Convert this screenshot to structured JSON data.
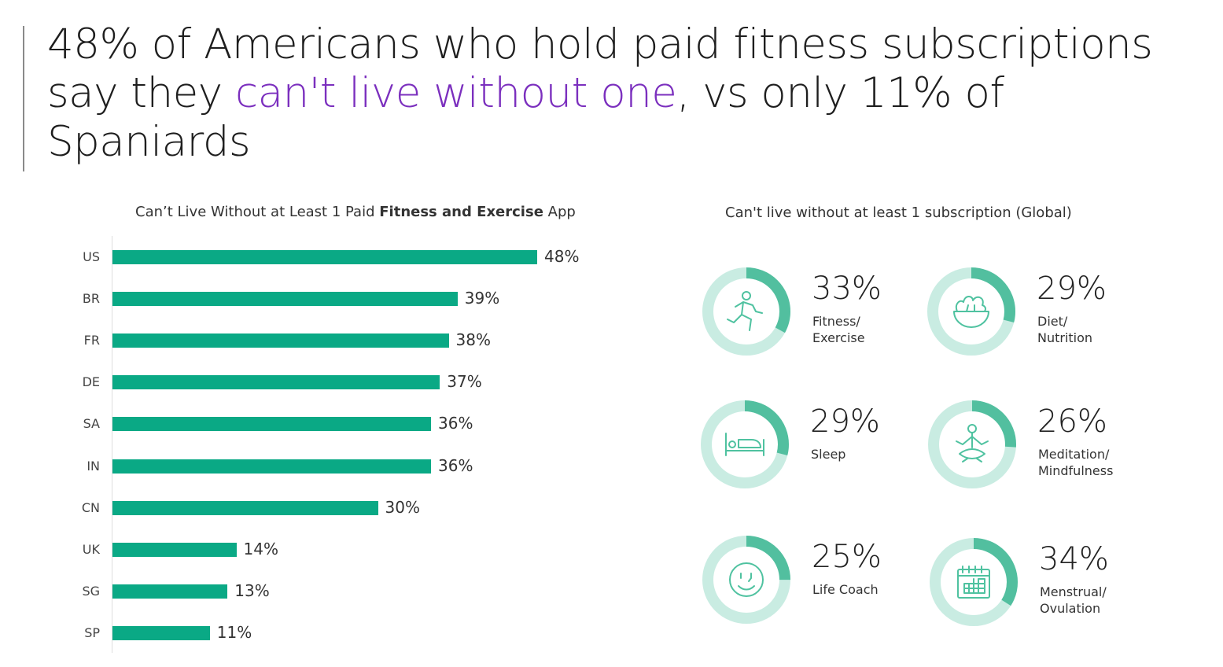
{
  "headline": {
    "part1": "48% of Americans who hold paid fitness subscriptions say they ",
    "highlight": "can't live without one",
    "part2": ", vs only 11% of Spaniards"
  },
  "colors": {
    "bar": "#0aa985",
    "ring_light": "#c9ece2",
    "ring_dark": "#52bf9f",
    "highlight": "#7b2fbe"
  },
  "chart_data": [
    {
      "type": "bar",
      "orientation": "horizontal",
      "title_pre": "Can’t Live Without at Least 1 Paid ",
      "title_bold": "Fitness and Exercise",
      "title_post": " App",
      "categories": [
        "US",
        "BR",
        "FR",
        "DE",
        "SA",
        "IN",
        "CN",
        "UK",
        "SG",
        "SP"
      ],
      "values": [
        48,
        39,
        38,
        37,
        36,
        36,
        30,
        14,
        13,
        11
      ],
      "labels": [
        "48%",
        "39%",
        "38%",
        "37%",
        "36%",
        "36%",
        "30%",
        "14%",
        "13%",
        "11%"
      ],
      "xlim": [
        0,
        48
      ]
    },
    {
      "type": "pie",
      "variant": "donut-grid",
      "title": "Can't live without at least 1 subscription (Global)",
      "items": [
        {
          "label": "Fitness/\nExercise",
          "value": 33,
          "pct": "33%",
          "icon": "running-person-icon"
        },
        {
          "label": "Diet/\nNutrition",
          "value": 29,
          "pct": "29%",
          "icon": "salad-bowl-icon"
        },
        {
          "label": "Sleep",
          "value": 29,
          "pct": "29%",
          "icon": "bed-icon"
        },
        {
          "label": "Meditation/\nMindfulness",
          "value": 26,
          "pct": "26%",
          "icon": "meditation-icon"
        },
        {
          "label": "Life Coach",
          "value": 25,
          "pct": "25%",
          "icon": "smiley-face-icon"
        },
        {
          "label": "Menstrual/\nOvulation",
          "value": 34,
          "pct": "34%",
          "icon": "calendar-icon"
        }
      ]
    }
  ]
}
